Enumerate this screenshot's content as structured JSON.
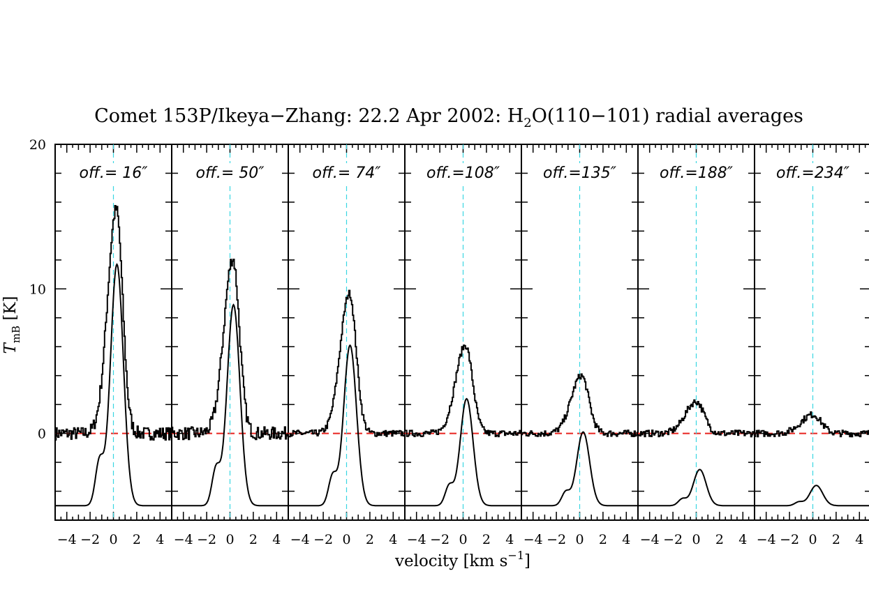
{
  "chart_data": {
    "type": "line",
    "title": {
      "prefix": "Comet 153P/Ikeya−Zhang: 22.2 Apr 2002: H",
      "subscript": "2",
      "suffix": "O(110−101) radial averages"
    },
    "xlabel": {
      "main": "velocity [km s",
      "superscript": "−1",
      "close": "]"
    },
    "ylabel": {
      "main": "T",
      "subscript": "mB",
      "unit": " [K]"
    },
    "x_tick_labels": [
      "−4",
      "−2",
      "0",
      "2",
      "4"
    ],
    "y_tick_labels": [
      "0",
      "10",
      "20"
    ],
    "xlim": [
      -5,
      5
    ],
    "ylim": [
      -6,
      20
    ],
    "grid": false,
    "colors": {
      "zero_line": "#e8231e",
      "center_line": "#39d6e2",
      "trace": "#000000"
    },
    "panels": [
      {
        "label": "off.=  16″",
        "obs_peak": 15.5,
        "obs_center": 0.25,
        "obs_sigma": 0.6,
        "model_amp": 16.7,
        "model_base": -5
      },
      {
        "label": "off.=  50″",
        "obs_peak": 12.1,
        "obs_center": 0.25,
        "obs_sigma": 0.62,
        "model_amp": 13.9,
        "model_base": -5
      },
      {
        "label": "off.=  74″",
        "obs_peak": 9.7,
        "obs_center": 0.25,
        "obs_sigma": 0.64,
        "model_amp": 11.1,
        "model_base": -5
      },
      {
        "label": "off.=108″",
        "obs_peak": 6.1,
        "obs_center": 0.2,
        "obs_sigma": 0.68,
        "model_amp": 7.4,
        "model_base": -5
      },
      {
        "label": "off.=135″",
        "obs_peak": 4.0,
        "obs_center": 0.15,
        "obs_sigma": 0.7,
        "model_amp": 5.1,
        "model_base": -5
      },
      {
        "label": "off.=188″",
        "obs_peak": 2.2,
        "obs_center": 0.0,
        "obs_sigma": 0.75,
        "model_amp": 2.5,
        "model_base": -5
      },
      {
        "label": "off.=234″",
        "obs_peak": 1.3,
        "obs_center": 0.0,
        "obs_sigma": 0.8,
        "model_amp": 1.4,
        "model_base": -5
      }
    ]
  }
}
